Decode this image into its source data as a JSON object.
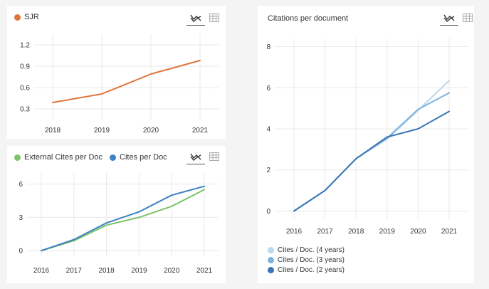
{
  "toolbar": {
    "line_icon": "line-chart-icon",
    "table_icon": "table-icon"
  },
  "chart_data": [
    {
      "type": "line",
      "title": "",
      "x": [
        2018,
        2019,
        2020,
        2021
      ],
      "yticks": [
        0.3,
        0.6,
        0.9,
        1.2
      ],
      "ylim": [
        0.15,
        1.35
      ],
      "grid": true,
      "legend": "top-left",
      "series": [
        {
          "name": "SJR",
          "color": "#e0753a",
          "values": [
            0.39,
            0.51,
            0.79,
            0.98
          ]
        }
      ]
    },
    {
      "type": "line",
      "title": "",
      "x": [
        2016,
        2017,
        2018,
        2019,
        2020,
        2021
      ],
      "yticks": [
        0,
        3,
        6
      ],
      "ylim": [
        -0.5,
        7
      ],
      "grid": true,
      "legend": "top-left",
      "series": [
        {
          "name": "External Cites per Doc",
          "color": "#7cc36a",
          "values": [
            0,
            0.9,
            2.3,
            3,
            4,
            5.5
          ]
        },
        {
          "name": "Cites per Doc",
          "color": "#3b82c4",
          "values": [
            0,
            1,
            2.5,
            3.5,
            5,
            5.8
          ]
        }
      ]
    },
    {
      "type": "line",
      "title": "Citations per document",
      "x": [
        2016,
        2017,
        2018,
        2019,
        2020,
        2021
      ],
      "yticks": [
        0,
        2,
        4,
        6,
        8
      ],
      "ylim": [
        -0.4,
        8.4
      ],
      "grid": true,
      "legend": "bottom-left",
      "series": [
        {
          "name": "Cites / Doc. (4 years)",
          "color": "#b9d7ee",
          "values": [
            0,
            1,
            2.55,
            3.5,
            4.9,
            6.35
          ]
        },
        {
          "name": "Cites / Doc. (3 years)",
          "color": "#7fb3df",
          "values": [
            0,
            1,
            2.55,
            3.55,
            4.95,
            5.75
          ]
        },
        {
          "name": "Cites / Doc. (2 years)",
          "color": "#3a76b5",
          "values": [
            0,
            1,
            2.55,
            3.6,
            4,
            4.85
          ]
        }
      ]
    }
  ]
}
